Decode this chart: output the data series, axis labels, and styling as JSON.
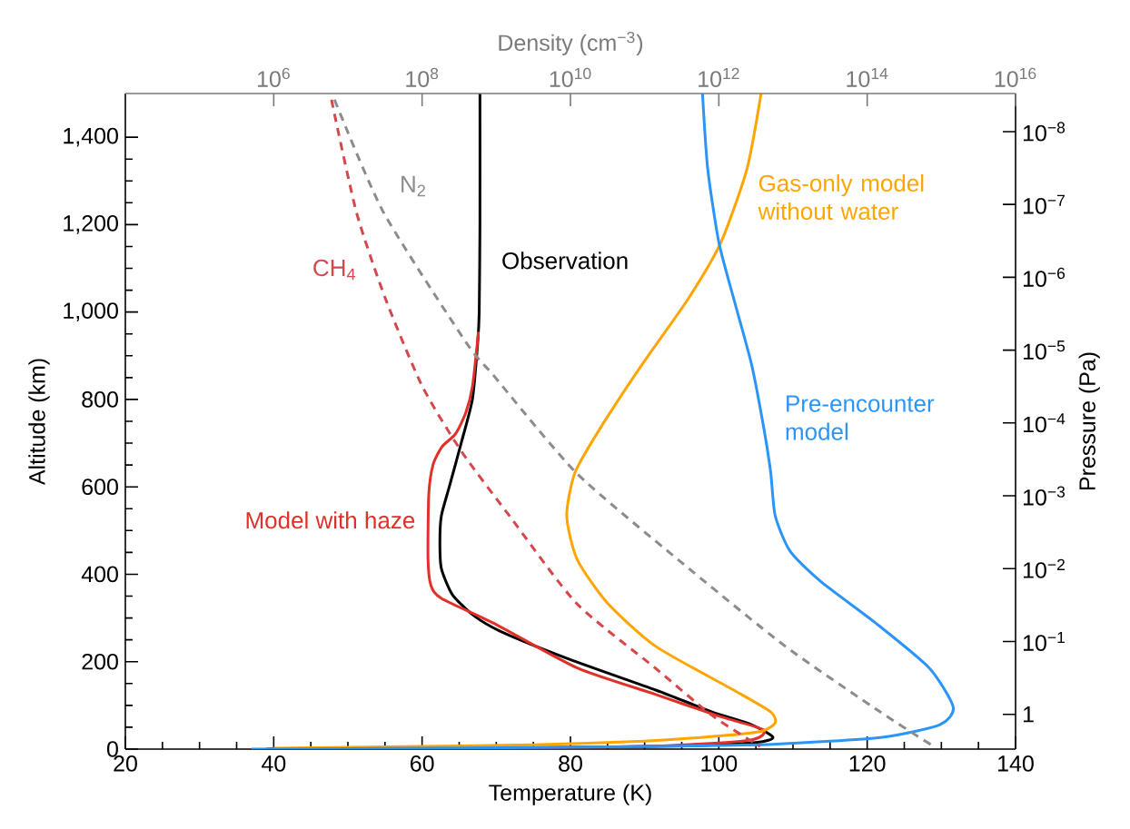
{
  "chart_data": [
    {
      "type": "line",
      "xlabel": "Temperature (K)",
      "ylabel": "Altitude (km)",
      "y2label": "Pressure (Pa)",
      "xlim": [
        20,
        140
      ],
      "xticks": [
        20,
        40,
        60,
        80,
        100,
        120,
        140
      ],
      "ylim": [
        0,
        1500
      ],
      "yticks": [
        0,
        200,
        400,
        600,
        800,
        {
          "value": 1000,
          "label": "1,000"
        },
        {
          "value": 1200,
          "label": "1,200"
        },
        {
          "value": 1400,
          "label": "1,400"
        }
      ],
      "log": "y2",
      "y2lim": [
        3,
        3e-09
      ],
      "y2ticks": [
        1,
        {
          "value": 0.1,
          "label": "10$^{−1}$"
        },
        {
          "value": 0.01,
          "label": "10$^{−2}$"
        },
        {
          "value": 0.001,
          "label": "10$^{−3}$"
        },
        {
          "value": 0.0001,
          "label": "10$^{−4}$"
        },
        {
          "value": 1e-05,
          "label": "10$^{−5}$"
        },
        {
          "value": 1e-06,
          "label": "10$^{−6}$"
        },
        {
          "value": 1e-07,
          "label": "10$^{−7}$"
        },
        {
          "value": 1e-08,
          "label": "10$^{−8}$"
        }
      ],
      "series": [
        {
          "name": "Observation",
          "color": "#000000",
          "x": [
            67.8,
            67.8,
            67.7,
            67.5,
            66.8,
            65.3,
            63.7,
            62.6,
            62.4,
            62.6,
            64.1,
            67,
            70.5,
            79.8,
            91.5,
            99.1,
            104.4,
            107.3,
            105,
            95,
            75,
            50,
            39
          ],
          "values": [
            1500,
            1200,
            1000,
            931,
            802,
            702,
            602,
            534,
            474,
            413,
            353,
            305,
            270,
            206,
            135,
            85,
            56,
            27,
            15,
            7,
            3,
            1,
            0
          ]
        },
        {
          "name": "Model with haze",
          "color": "#e0302a",
          "x": [
            67.6,
            66.8,
            65.9,
            64.5,
            62.7,
            61.5,
            60.9,
            60.8,
            61.2,
            62.6,
            70,
            81,
            91.5,
            99.7,
            106,
            104,
            90,
            70,
            40
          ],
          "values": [
            955,
            831,
            770,
            721,
            692,
            652,
            582,
            434,
            374,
            345,
            285,
            185,
            125,
            77,
            44,
            20,
            6,
            3,
            0
          ]
        },
        {
          "name": "Gas-only model without water",
          "color": "#ffa500",
          "x": [
            105.7,
            103.8,
            100.3,
            95.9,
            89.7,
            83.9,
            80.6,
            79.5,
            80.9,
            85,
            91.5,
            102,
            107,
            107.6,
            105.8,
            100.8,
            90,
            75,
            60,
            40
          ],
          "values": [
            1500,
            1328,
            1160,
            1031,
            881,
            731,
            632,
            534,
            434,
            334,
            235,
            135,
            85,
            60,
            41,
            31,
            18,
            10,
            6,
            2
          ]
        },
        {
          "name": "Pre-encounter model",
          "color": "#2b95f7",
          "x": [
            97.8,
            98.5,
            100,
            102,
            104.4,
            106.1,
            107,
            107.6,
            109.6,
            113.7,
            121.4,
            128.4,
            131.6,
            129.8,
            122,
            107.3,
            90,
            70,
            50,
            37
          ],
          "values": [
            1500,
            1328,
            1160,
            1031,
            881,
            731,
            632,
            534,
            453,
            384,
            285,
            185,
            96,
            56,
            27,
            11,
            6,
            3,
            1,
            0
          ]
        }
      ]
    },
    {
      "type": "line",
      "xlabel": "Density (cm$^{−3}$)",
      "xlim": [
        10000.0,
        1e+16
      ],
      "xticks": [
        {
          "value": 1000000.0,
          "label": "10$^{6}$"
        },
        {
          "value": 100000000.0,
          "label": "10$^{8}$"
        },
        {
          "value": 10000000000.0,
          "label": "10$^{10}$"
        },
        {
          "value": 1000000000000.0,
          "label": "10$^{12}$"
        },
        {
          "value": 100000000000000.0,
          "label": "10$^{14}$"
        },
        {
          "value": 1e+16,
          "label": "10$^{16}$"
        }
      ],
      "ylim": [
        0,
        1500
      ],
      "log": "x",
      "tick_labels": "x",
      "line_style": "dashed",
      "series": [
        {
          "name": "N$_{2}$",
          "color": "#8c8c8c",
          "x": [
            6600000.0,
            30000000.0,
            390000000.0,
            950000000.0,
            12000000000.0,
            280000000000.0,
            7900000000000.0,
            150000000000000.0,
            790000000000000.0
          ],
          "values": [
            1486,
            1229,
            931,
            852,
            632,
            434,
            235,
            85,
            6
          ]
        },
        {
          "name": "CH$_{4}$",
          "color": "#d4474b",
          "x": [
            6000000.0,
            13000000.0,
            32000000.0,
            100000000.0,
            340000000.0,
            1500000000.0,
            12000000000.0,
            140000000000.0,
            810000000000.0,
            3600000000000.0
          ],
          "values": [
            1486,
            1229,
            1031,
            831,
            681,
            534,
            334,
            185,
            77,
            6
          ]
        }
      ]
    }
  ]
}
